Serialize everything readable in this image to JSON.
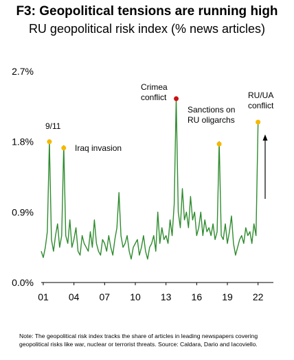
{
  "title": "F3: Geopolitical tensions are running high",
  "subtitle": "RU geopolitical risk index (% news articles)",
  "note": "Note: The geopolitical risk index tracks the share of articles in leading newspapers covering geopolitical risks like war, nuclear or terrorist threats. Source: Caldara, Dario and Iacoviello.",
  "chart_data": {
    "type": "line",
    "title": "RU geopolitical risk index (% news articles)",
    "xlabel": "",
    "ylabel": "",
    "x_ticks": [
      "01",
      "04",
      "07",
      "10",
      "13",
      "16",
      "19",
      "22"
    ],
    "y_ticks": [
      "0.0%",
      "0.9%",
      "1.8%",
      "2.7%"
    ],
    "xlim": [
      2000.8,
      2023.5
    ],
    "ylim": [
      0,
      2.7
    ],
    "grid": false,
    "line_color": "#2e8b2e",
    "x": [
      2000.8,
      2001.0,
      2001.2,
      2001.4,
      2001.6,
      2001.8,
      2002.0,
      2002.2,
      2002.4,
      2002.6,
      2002.8,
      2003.0,
      2003.2,
      2003.4,
      2003.6,
      2003.8,
      2004.0,
      2004.2,
      2004.4,
      2004.6,
      2004.8,
      2005.0,
      2005.2,
      2005.4,
      2005.6,
      2005.8,
      2006.0,
      2006.2,
      2006.4,
      2006.6,
      2006.8,
      2007.0,
      2007.2,
      2007.4,
      2007.6,
      2007.8,
      2008.0,
      2008.2,
      2008.4,
      2008.6,
      2008.8,
      2009.0,
      2009.2,
      2009.4,
      2009.6,
      2009.8,
      2010.0,
      2010.2,
      2010.4,
      2010.6,
      2010.8,
      2011.0,
      2011.2,
      2011.4,
      2011.6,
      2011.8,
      2012.0,
      2012.2,
      2012.4,
      2012.6,
      2012.8,
      2013.0,
      2013.2,
      2013.4,
      2013.6,
      2013.8,
      2014.0,
      2014.2,
      2014.4,
      2014.6,
      2014.8,
      2015.0,
      2015.2,
      2015.4,
      2015.6,
      2015.8,
      2016.0,
      2016.2,
      2016.4,
      2016.6,
      2016.8,
      2017.0,
      2017.2,
      2017.4,
      2017.6,
      2017.8,
      2018.0,
      2018.2,
      2018.4,
      2018.6,
      2018.8,
      2019.0,
      2019.2,
      2019.4,
      2019.6,
      2019.8,
      2020.0,
      2020.2,
      2020.4,
      2020.6,
      2020.8,
      2021.0,
      2021.2,
      2021.4,
      2021.6,
      2021.8,
      2022.0
    ],
    "y": [
      0.4,
      0.32,
      0.45,
      0.65,
      1.8,
      0.55,
      0.4,
      0.6,
      0.75,
      0.45,
      0.6,
      1.75,
      0.6,
      0.5,
      0.8,
      0.45,
      0.55,
      0.7,
      0.4,
      0.35,
      0.6,
      0.5,
      0.45,
      0.4,
      0.65,
      0.45,
      0.8,
      0.5,
      0.4,
      0.35,
      0.55,
      0.5,
      0.4,
      0.6,
      0.45,
      0.35,
      0.55,
      0.7,
      1.15,
      0.6,
      0.45,
      0.5,
      0.6,
      0.4,
      0.3,
      0.45,
      0.5,
      0.55,
      0.35,
      0.45,
      0.6,
      0.4,
      0.3,
      0.45,
      0.5,
      0.6,
      0.4,
      0.9,
      0.5,
      0.7,
      0.55,
      0.6,
      0.5,
      0.8,
      0.6,
      1.0,
      2.35,
      0.9,
      0.7,
      1.2,
      0.8,
      0.9,
      0.7,
      1.1,
      0.8,
      0.9,
      0.6,
      0.7,
      0.9,
      0.6,
      0.8,
      0.65,
      0.7,
      0.6,
      0.75,
      0.55,
      0.65,
      1.8,
      0.6,
      0.55,
      0.75,
      0.5,
      0.65,
      0.85,
      0.5,
      0.35,
      0.45,
      0.55,
      0.6,
      0.5,
      0.7,
      0.6,
      0.65,
      0.5,
      0.75,
      0.6,
      2.05
    ],
    "annotations": [
      {
        "label": "9/11",
        "x": 2001.6,
        "y": 1.8,
        "color": "#f5b800"
      },
      {
        "label": "Iraq invasion",
        "x": 2003.0,
        "y": 1.72,
        "color": "#f5b800"
      },
      {
        "label": "Crimea conflict",
        "x": 2014.0,
        "y": 2.35,
        "color": "#cc1010"
      },
      {
        "label": "Sanctions on RU oligarchs",
        "x": 2018.2,
        "y": 1.77,
        "color": "#f5b800"
      },
      {
        "label": "RU/UA conflict",
        "x": 2022.0,
        "y": 2.05,
        "color": "#f5b800"
      }
    ]
  }
}
